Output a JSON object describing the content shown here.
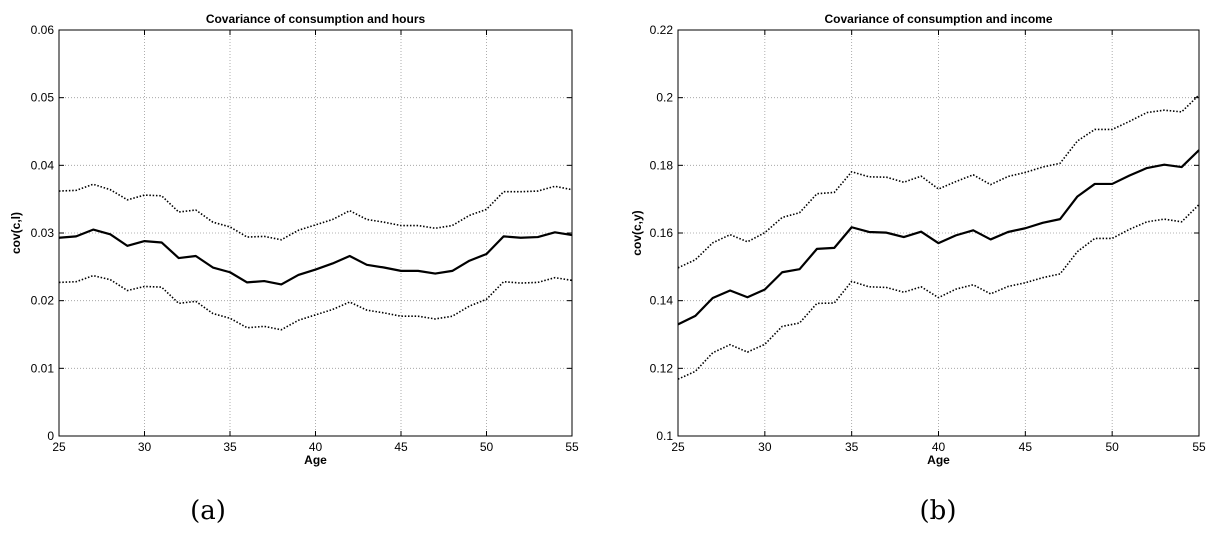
{
  "chart_data": [
    {
      "type": "line",
      "title": "Covariance of consumption and hours",
      "xlabel": "Age",
      "ylabel": "cov(c,l)",
      "xlim": [
        25,
        55
      ],
      "ylim": [
        0,
        0.06
      ],
      "xticks": [
        25,
        30,
        35,
        40,
        45,
        50,
        55
      ],
      "yticks": [
        0,
        0.01,
        0.02,
        0.03,
        0.04,
        0.05,
        0.06
      ],
      "ytick_labels": [
        "0",
        "0.01",
        "0.02",
        "0.03",
        "0.04",
        "0.05",
        "0.06"
      ],
      "grid": true,
      "caption": "(a)",
      "x": [
        25,
        26,
        27,
        28,
        29,
        30,
        31,
        32,
        33,
        34,
        35,
        36,
        37,
        38,
        39,
        40,
        41,
        42,
        43,
        44,
        45,
        46,
        47,
        48,
        49,
        50,
        51,
        52,
        53,
        54,
        55
      ],
      "series": [
        {
          "style": "solid",
          "values": [
            0.0293,
            0.0295,
            0.0305,
            0.0298,
            0.0281,
            0.0288,
            0.0286,
            0.0263,
            0.0266,
            0.0249,
            0.0242,
            0.0227,
            0.0229,
            0.0224,
            0.0238,
            0.0246,
            0.0255,
            0.0266,
            0.0253,
            0.0249,
            0.0244,
            0.0244,
            0.024,
            0.0244,
            0.0259,
            0.0269,
            0.0295,
            0.0293,
            0.0294,
            0.0301,
            0.0297
          ]
        },
        {
          "style": "dotted",
          "values": [
            0.0362,
            0.0363,
            0.0372,
            0.0364,
            0.0349,
            0.0356,
            0.0355,
            0.0331,
            0.0334,
            0.0316,
            0.0309,
            0.0294,
            0.0295,
            0.029,
            0.0304,
            0.0312,
            0.032,
            0.0333,
            0.032,
            0.0316,
            0.0311,
            0.0311,
            0.0307,
            0.0311,
            0.0326,
            0.0335,
            0.0361,
            0.0361,
            0.0362,
            0.0369,
            0.0364
          ]
        },
        {
          "style": "dotted",
          "values": [
            0.0227,
            0.0228,
            0.0237,
            0.0231,
            0.0215,
            0.0221,
            0.022,
            0.0196,
            0.0199,
            0.0181,
            0.0174,
            0.016,
            0.0162,
            0.0157,
            0.0171,
            0.0179,
            0.0187,
            0.0198,
            0.0186,
            0.0182,
            0.0177,
            0.0177,
            0.0173,
            0.0177,
            0.0192,
            0.0202,
            0.0228,
            0.0226,
            0.0227,
            0.0234,
            0.023
          ]
        }
      ]
    },
    {
      "type": "line",
      "title": "Covariance of consumption and income",
      "xlabel": "Age",
      "ylabel": "cov(c,y)",
      "xlim": [
        25,
        55
      ],
      "ylim": [
        0.1,
        0.22
      ],
      "xticks": [
        25,
        30,
        35,
        40,
        45,
        50,
        55
      ],
      "yticks": [
        0.1,
        0.12,
        0.14,
        0.16,
        0.18,
        0.2,
        0.22
      ],
      "ytick_labels": [
        "0.1",
        "0.12",
        "0.14",
        "0.16",
        "0.18",
        "0.2",
        "0.22"
      ],
      "grid": true,
      "caption": "(b)",
      "x": [
        25,
        26,
        27,
        28,
        29,
        30,
        31,
        32,
        33,
        34,
        35,
        36,
        37,
        38,
        39,
        40,
        41,
        42,
        43,
        44,
        45,
        46,
        47,
        48,
        49,
        50,
        51,
        52,
        53,
        54,
        55
      ],
      "series": [
        {
          "style": "solid",
          "values": [
            0.133,
            0.1355,
            0.1408,
            0.143,
            0.141,
            0.1433,
            0.1484,
            0.1493,
            0.1553,
            0.1556,
            0.1617,
            0.1603,
            0.1601,
            0.1588,
            0.1604,
            0.157,
            0.1593,
            0.1608,
            0.1581,
            0.1603,
            0.1614,
            0.163,
            0.1641,
            0.1708,
            0.1745,
            0.1745,
            0.177,
            0.1792,
            0.1802,
            0.1795,
            0.1845
          ]
        },
        {
          "style": "dotted",
          "values": [
            0.1497,
            0.1521,
            0.1571,
            0.1595,
            0.1574,
            0.1601,
            0.1646,
            0.166,
            0.1716,
            0.172,
            0.1781,
            0.1766,
            0.1765,
            0.175,
            0.1768,
            0.173,
            0.1752,
            0.1772,
            0.1743,
            0.1767,
            0.1779,
            0.1795,
            0.1806,
            0.1872,
            0.1906,
            0.1906,
            0.193,
            0.1956,
            0.1963,
            0.1958,
            0.2008
          ]
        },
        {
          "style": "dotted",
          "values": [
            0.1168,
            0.1191,
            0.1246,
            0.127,
            0.1248,
            0.1271,
            0.1324,
            0.1334,
            0.1392,
            0.1393,
            0.1457,
            0.1441,
            0.1439,
            0.1425,
            0.1441,
            0.1409,
            0.1434,
            0.1447,
            0.142,
            0.1442,
            0.1453,
            0.1468,
            0.1479,
            0.1545,
            0.1584,
            0.1584,
            0.1611,
            0.1633,
            0.1641,
            0.1633,
            0.1684
          ]
        }
      ]
    }
  ]
}
